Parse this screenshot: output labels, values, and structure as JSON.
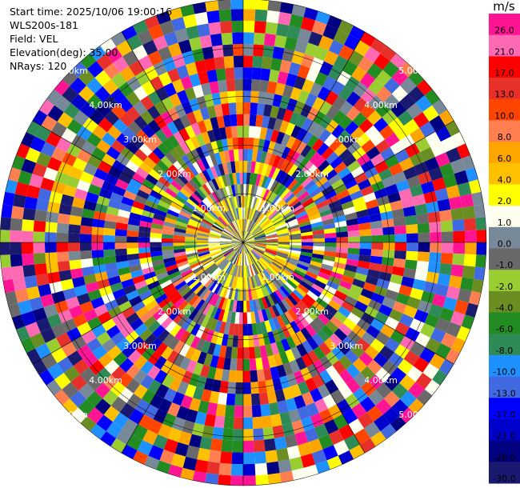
{
  "info": {
    "start_time": "Start time: 2025/10/06 19:00:16",
    "site": "WLS200s-181",
    "field": "Field: VEL",
    "elevation": "Elevation(deg): 35.00",
    "nrays": "NRays: 120"
  },
  "colorbar": {
    "unit": "m/s",
    "bins": [
      {
        "label": "26.0",
        "color": "#ff1493"
      },
      {
        "label": "21.0",
        "color": "#ff69b4"
      },
      {
        "label": "17.0",
        "color": "#ff0000"
      },
      {
        "label": "13.0",
        "color": "#e8302a"
      },
      {
        "label": "10.0",
        "color": "#ff4500"
      },
      {
        "label": "8.0",
        "color": "#ff7f50"
      },
      {
        "label": "6.0",
        "color": "#ffa500"
      },
      {
        "label": "4.0",
        "color": "#ffc000"
      },
      {
        "label": "2.0",
        "color": "#ffff00"
      },
      {
        "label": "1.0",
        "color": "#fffff0"
      },
      {
        "label": "0.0",
        "color": "#778899"
      },
      {
        "label": "-1.0",
        "color": "#696969"
      },
      {
        "label": "-2.0",
        "color": "#9acd32"
      },
      {
        "label": "-4.0",
        "color": "#6b8e23"
      },
      {
        "label": "-6.0",
        "color": "#228b22"
      },
      {
        "label": "-8.0",
        "color": "#2e8b57"
      },
      {
        "label": "-10.0",
        "color": "#1e90ff"
      },
      {
        "label": "-13.0",
        "color": "#4169e1"
      },
      {
        "label": "-17.0",
        "color": "#0000ff"
      },
      {
        "label": "-21.0",
        "color": "#0000cd"
      },
      {
        "label": "-26.0",
        "color": "#000080"
      },
      {
        "label": "-30.0",
        "color": "#191970"
      }
    ]
  },
  "chart_data": {
    "type": "heatmap",
    "projection": "polar PPI",
    "field": "VEL",
    "units": "m/s",
    "nrays": 120,
    "max_range_km": 5.0,
    "range_rings_km": [
      1.0,
      2.0,
      3.0,
      4.0,
      5.0
    ],
    "ring_labels": [
      "1.00km",
      "2.00km",
      "3.00km",
      "4.00km",
      "5.00km"
    ],
    "grid": true,
    "legend": "colorbar-right",
    "description_of_values": "near-range gates (<1 km) mostly -2 to 2 m/s (yellow/green/grey); beyond 1 km values are noisy across the full -30 to 26 m/s scale"
  }
}
